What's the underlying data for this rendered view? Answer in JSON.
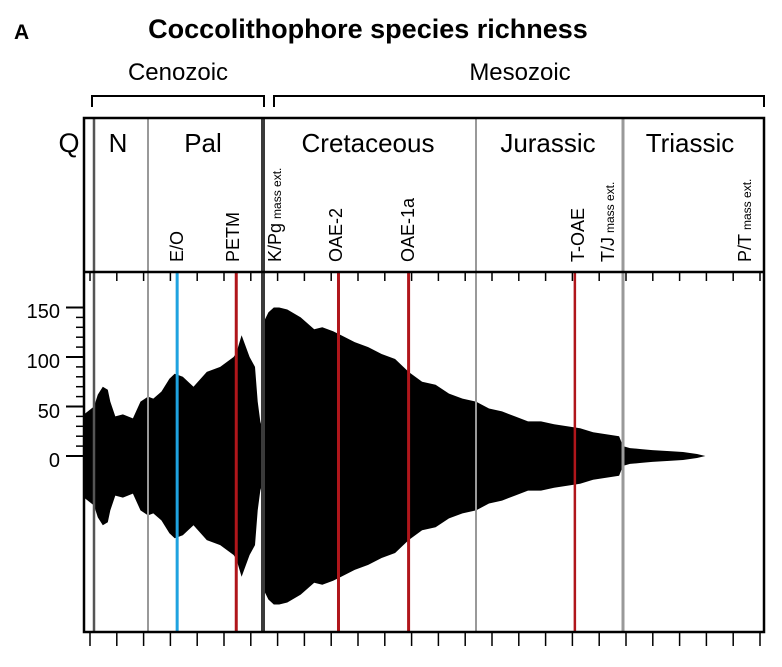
{
  "panel_letter": "A",
  "chart_data": {
    "type": "area",
    "title": "Coccolithophore species richness",
    "xlabel": "",
    "ylabel": "",
    "ylim": [
      -155,
      155
    ],
    "yticks": [
      "150",
      "100",
      "50",
      "0"
    ],
    "eras": [
      {
        "label": "Cenozoic",
        "spans": [
          "Q",
          "N",
          "Pal"
        ]
      },
      {
        "label": "Mesozoic",
        "spans": [
          "Cretaceous",
          "Jurassic",
          "Triassic"
        ]
      }
    ],
    "periods": [
      "Q",
      "N",
      "Pal",
      "Cretaceous",
      "Jurassic",
      "Triassic"
    ],
    "events": [
      {
        "label": "E/O",
        "suffix": "",
        "color": "#1fa3e0"
      },
      {
        "label": "PETM",
        "suffix": "",
        "color": "#b0161b"
      },
      {
        "label": "K/Pg",
        "suffix": "mass ext.",
        "color": "#3a3a3a"
      },
      {
        "label": "OAE-2",
        "suffix": "",
        "color": "#b0161b"
      },
      {
        "label": "OAE-1a",
        "suffix": "",
        "color": "#b0161b"
      },
      {
        "label": "T-OAE",
        "suffix": "",
        "color": "#b0161b"
      },
      {
        "label": "T/J",
        "suffix": "mass ext.",
        "color": "#999999"
      },
      {
        "label": "P/T",
        "suffix": "mass ext.",
        "color": "#3a3a3a"
      }
    ],
    "series": [
      {
        "x": [
          0,
          1.5,
          3,
          5,
          7,
          8,
          10,
          13,
          15,
          17,
          20,
          23,
          25,
          28,
          31,
          33,
          36,
          40,
          45,
          50,
          55,
          56,
          58,
          61,
          63,
          64,
          65,
          66,
          66.2,
          68,
          70,
          72,
          75,
          80,
          85,
          88,
          92,
          95,
          100,
          105,
          110,
          115,
          120,
          125,
          130,
          135,
          140,
          145,
          150,
          155,
          160,
          165,
          170,
          175,
          180,
          185,
          190,
          195,
          200,
          201.5,
          204,
          208,
          212,
          218,
          223,
          228,
          231
        ],
        "values": [
          42,
          50,
          62,
          70,
          67,
          55,
          40,
          42,
          40,
          38,
          55,
          60,
          58,
          65,
          78,
          83,
          80,
          70,
          85,
          90,
          100,
          104,
          122,
          100,
          90,
          55,
          35,
          25,
          135,
          145,
          150,
          150,
          148,
          140,
          128,
          130,
          126,
          122,
          115,
          110,
          103,
          98,
          85,
          75,
          72,
          63,
          58,
          55,
          48,
          45,
          40,
          35,
          35,
          32,
          30,
          28,
          24,
          22,
          20,
          10,
          8,
          7,
          6,
          5,
          4,
          2,
          0
        ]
      }
    ]
  }
}
